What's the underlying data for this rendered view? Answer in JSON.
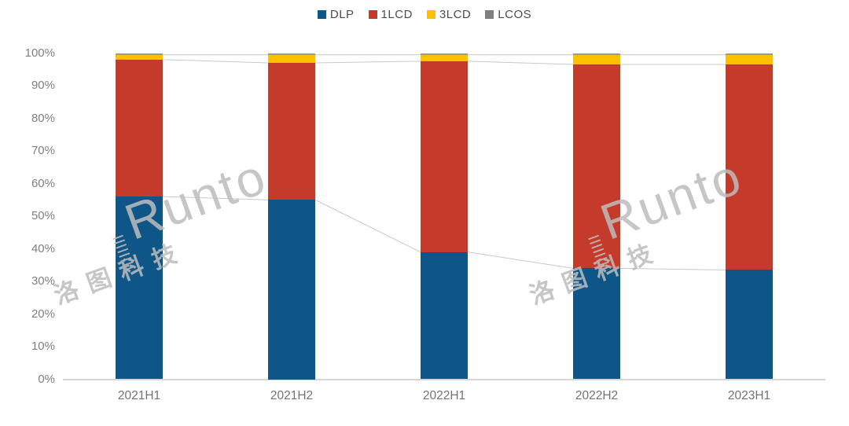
{
  "chart_data": {
    "type": "bar",
    "stacked": true,
    "title": "",
    "categories": [
      "2021H1",
      "2021H2",
      "2022H1",
      "2022H2",
      "2023H1"
    ],
    "series": [
      {
        "name": "DLP",
        "color": "#0f5688",
        "values": [
          56,
          55,
          39,
          34,
          33.5
        ]
      },
      {
        "name": "1LCD",
        "color": "#c43b2b",
        "values": [
          42,
          42,
          58.5,
          62.5,
          63
        ]
      },
      {
        "name": "3LCD",
        "color": "#ffc000",
        "values": [
          1.5,
          2.5,
          2,
          3,
          3
        ]
      },
      {
        "name": "LCOS",
        "color": "#999999",
        "values": [
          0.5,
          0.5,
          0.5,
          0.5,
          0.5
        ]
      }
    ],
    "unit": "%",
    "ylim": [
      0,
      100
    ],
    "ytick_step": 10,
    "ytick_labels": [
      "0%",
      "10%",
      "20%",
      "30%",
      "40%",
      "50%",
      "60%",
      "70%",
      "80%",
      "90%",
      "100%"
    ],
    "legend_position": "top",
    "grid": false,
    "connector_lines": true
  },
  "watermark": {
    "brand": "Runto",
    "cjk": "洛图科技"
  }
}
